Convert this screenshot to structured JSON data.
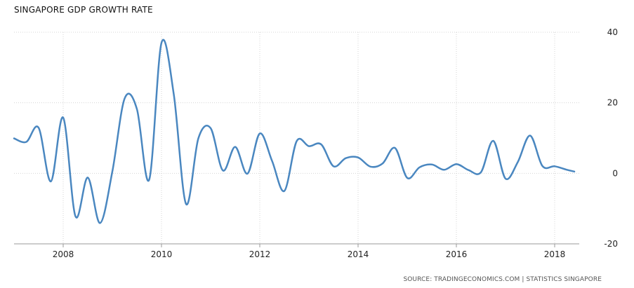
{
  "title": "SINGAPORE GDP GROWTH RATE",
  "source": "SOURCE: TRADINGECONOMICS.COM | STATISTICS SINGAPORE",
  "colors": {
    "line": "#4a87c0",
    "grid": "#d5d5d5",
    "axis": "#9a9a9a"
  },
  "chart_data": {
    "type": "line",
    "title": "SINGAPORE GDP GROWTH RATE",
    "xlabel": "",
    "ylabel": "",
    "xlim": [
      2007.0,
      2018.5
    ],
    "ylim": [
      -20,
      40
    ],
    "grid": true,
    "x_ticks": [
      {
        "value": 2008,
        "label": "2008"
      },
      {
        "value": 2010,
        "label": "2010"
      },
      {
        "value": 2012,
        "label": "2012"
      },
      {
        "value": 2014,
        "label": "2014"
      },
      {
        "value": 2016,
        "label": "2016"
      },
      {
        "value": 2018,
        "label": "2018"
      }
    ],
    "y_ticks": [
      {
        "value": 40,
        "label": "40"
      },
      {
        "value": 20,
        "label": "20"
      },
      {
        "value": 0,
        "label": "0"
      },
      {
        "value": -20,
        "label": "-20"
      }
    ],
    "series": [
      {
        "x": [
          2007.0,
          2007.25,
          2007.5,
          2007.75,
          2008.0,
          2008.25,
          2008.5,
          2008.75,
          2009.0,
          2009.25,
          2009.5,
          2009.75,
          2010.0,
          2010.25,
          2010.5,
          2010.75,
          2011.0,
          2011.25,
          2011.5,
          2011.75,
          2012.0,
          2012.25,
          2012.5,
          2012.75,
          2013.0,
          2013.25,
          2013.5,
          2013.75,
          2014.0,
          2014.25,
          2014.5,
          2014.75,
          2015.0,
          2015.25,
          2015.5,
          2015.75,
          2016.0,
          2016.25,
          2016.5,
          2016.75,
          2017.0,
          2017.25,
          2017.5,
          2017.75,
          2018.0,
          2018.25,
          2018.4
        ],
        "values": [
          9.9,
          8.9,
          12.9,
          -2.3,
          15.8,
          -12.2,
          -1.2,
          -14.1,
          0.5,
          21.2,
          18.2,
          -1.8,
          37.0,
          22.4,
          -8.7,
          9.9,
          12.8,
          0.8,
          7.5,
          -0.1,
          11.3,
          3.5,
          -5.0,
          9.1,
          7.7,
          8.2,
          2.0,
          4.3,
          4.5,
          1.9,
          2.8,
          7.2,
          -1.3,
          1.7,
          2.5,
          1.0,
          2.6,
          0.9,
          0.3,
          9.2,
          -1.5,
          3.2,
          10.7,
          2.1,
          2.0,
          1.0,
          0.5
        ]
      }
    ]
  }
}
